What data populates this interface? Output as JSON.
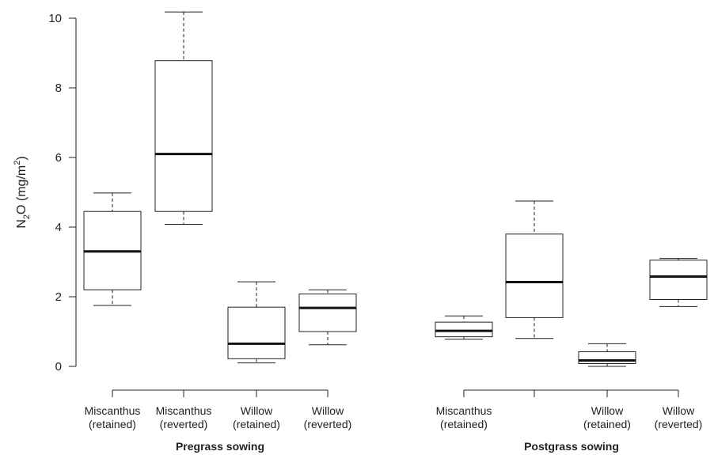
{
  "chart_data": {
    "type": "boxplot",
    "ylabel": "N2O (mg/m2)",
    "ylabel_parts": {
      "base": "N",
      "sub": "2",
      "mid": "O (mg/m",
      "sup": "2",
      "end": ")"
    },
    "ylim": [
      0,
      10
    ],
    "yticks": [
      0,
      2,
      4,
      6,
      8,
      10
    ],
    "grid": false,
    "groups": [
      {
        "name": "Pregrass sowing",
        "boxes": [
          {
            "label_line1": "Miscanthus",
            "label_line2": "(retained)",
            "whisker_low": 1.75,
            "q1": 2.2,
            "median": 3.3,
            "q3": 4.45,
            "whisker_high": 4.98
          },
          {
            "label_line1": "Miscanthus",
            "label_line2": "(reverted)",
            "whisker_low": 4.08,
            "q1": 4.45,
            "median": 6.1,
            "q3": 8.78,
            "whisker_high": 10.18
          },
          {
            "label_line1": "Willow",
            "label_line2": "(retained)",
            "whisker_low": 0.1,
            "q1": 0.22,
            "median": 0.65,
            "q3": 1.7,
            "whisker_high": 2.43
          },
          {
            "label_line1": "Willow",
            "label_line2": "(reverted)",
            "whisker_low": 0.62,
            "q1": 1.0,
            "median": 1.68,
            "q3": 2.08,
            "whisker_high": 2.2
          }
        ]
      },
      {
        "name": "Postgrass sowing",
        "boxes": [
          {
            "label_line1": "Miscanthus",
            "label_line2": "(retained)",
            "whisker_low": 0.78,
            "q1": 0.85,
            "median": 1.02,
            "q3": 1.27,
            "whisker_high": 1.45
          },
          {
            "label_line1": "",
            "label_line2": "",
            "whisker_low": 0.8,
            "q1": 1.4,
            "median": 2.42,
            "q3": 3.8,
            "whisker_high": 4.75
          },
          {
            "label_line1": "Willow",
            "label_line2": "(retained)",
            "whisker_low": 0.0,
            "q1": 0.08,
            "median": 0.17,
            "q3": 0.42,
            "whisker_high": 0.65
          },
          {
            "label_line1": "Willow",
            "label_line2": "(reverted)",
            "whisker_low": 1.72,
            "q1": 1.92,
            "median": 2.58,
            "q3": 3.05,
            "whisker_high": 3.1
          }
        ]
      }
    ]
  }
}
